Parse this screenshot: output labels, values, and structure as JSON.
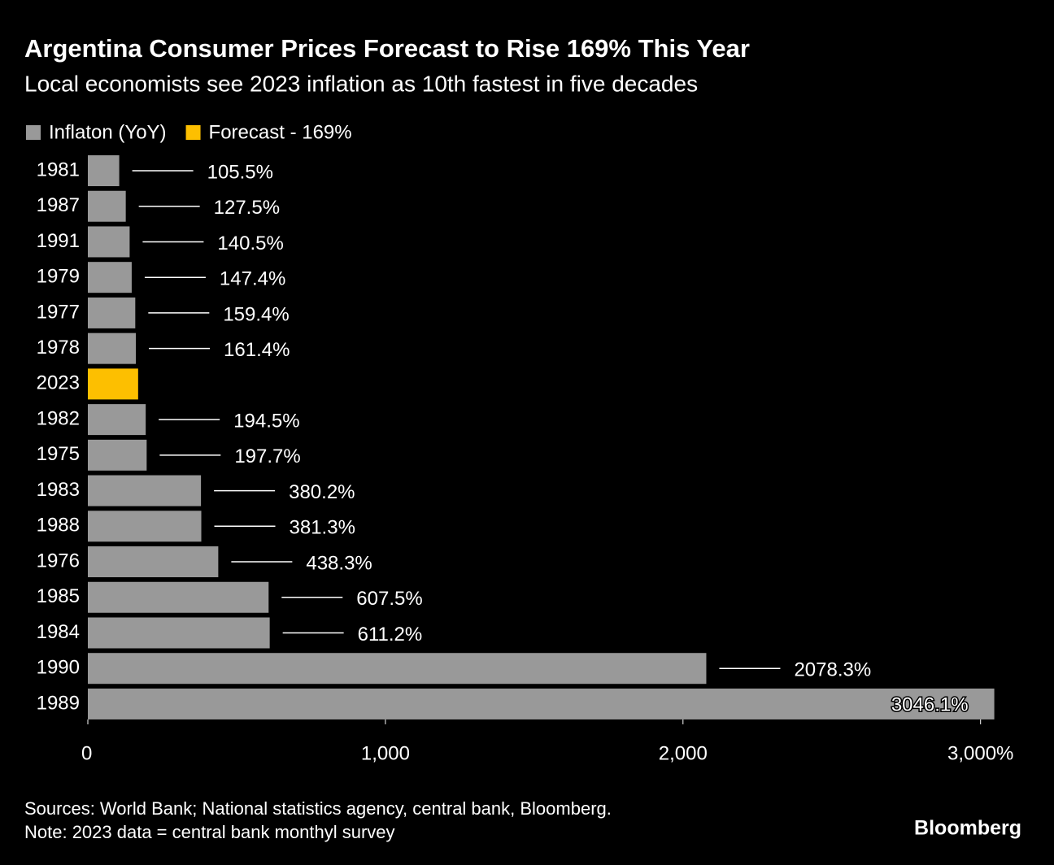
{
  "chart_data": {
    "type": "hbar",
    "title": "Argentina Consumer Prices Forecast to Rise 169% This Year",
    "subtitle": "Local economists see 2023 inflation as 10th fastest in five decades",
    "categories": [
      "1981",
      "1987",
      "1991",
      "1979",
      "1977",
      "1978",
      "2023",
      "1982",
      "1975",
      "1983",
      "1988",
      "1976",
      "1985",
      "1984",
      "1990",
      "1989"
    ],
    "series": [
      {
        "name": "Inflaton (YoY)",
        "color": "#999999",
        "values": [
          105.5,
          127.5,
          140.5,
          147.4,
          159.4,
          161.4,
          null,
          194.5,
          197.7,
          380.2,
          381.3,
          438.3,
          607.5,
          611.2,
          2078.3,
          3046.1
        ],
        "value_labels": [
          "105.5%",
          "127.5%",
          "140.5%",
          "147.4%",
          "159.4%",
          "161.4%",
          null,
          "194.5%",
          "197.7%",
          "380.2%",
          "381.3%",
          "438.3%",
          "607.5%",
          "611.2%",
          "2078.3%",
          "3046.1%"
        ]
      },
      {
        "name": "Forecast - 169%",
        "color": "#fdbf00",
        "values": [
          null,
          null,
          null,
          null,
          null,
          null,
          169,
          null,
          null,
          null,
          null,
          null,
          null,
          null,
          null,
          null
        ]
      }
    ],
    "xlim": [
      0,
      3050
    ],
    "xticks": [
      0,
      {
        "value": 1000,
        "label": "1,000"
      },
      {
        "value": 2000,
        "label": "2,000"
      },
      {
        "value": 3000,
        "label": "3,000%"
      }
    ],
    "source": "Sources: World Bank; National statistics agency, central bank, Bloomberg.",
    "note": "Note: 2023 data = central bank monthyl survey",
    "brand": "Bloomberg"
  }
}
